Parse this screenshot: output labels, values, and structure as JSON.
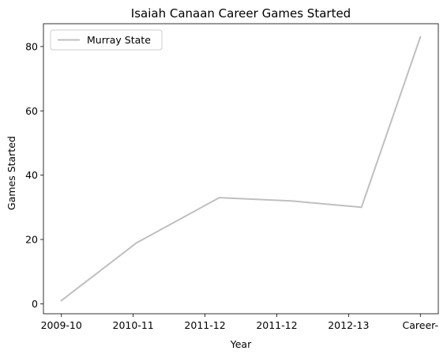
{
  "chart_data": {
    "type": "line",
    "title": "Isaiah Canaan Career Games Started",
    "xlabel": "Year",
    "ylabel": "Games Started",
    "categories": [
      "2009-10",
      "2010-11",
      "2011-12",
      "2011-12",
      "2012-13",
      "Career-"
    ],
    "x": [
      0,
      1.05,
      2.2,
      3.2,
      4.18,
      5.0
    ],
    "series": [
      {
        "name": "Murray State",
        "values": [
          1,
          19,
          33,
          32,
          30,
          83
        ],
        "color": "#bfbfbf"
      }
    ],
    "xticks": [
      0,
      1,
      2,
      3,
      4,
      5
    ],
    "xlim": [
      -0.25,
      5.25
    ],
    "yticks": [
      0,
      20,
      40,
      60,
      80
    ],
    "ylim": [
      -3.1,
      87.1
    ],
    "grid": false,
    "legend": "upper-left"
  }
}
